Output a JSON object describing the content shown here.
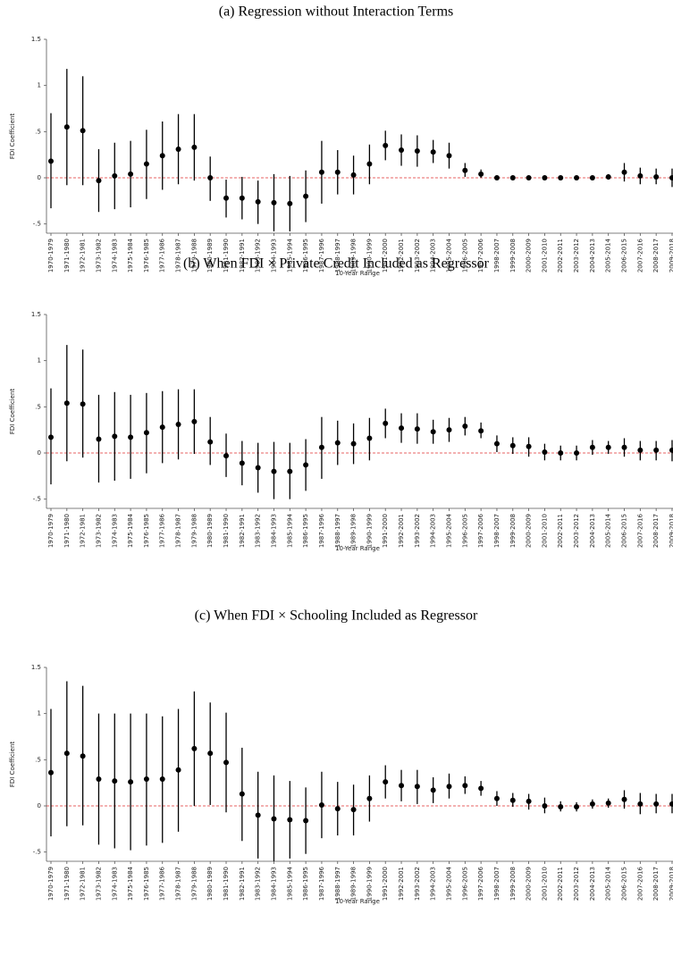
{
  "chart_data": [
    {
      "type": "errorbar",
      "title": "(a) Regression without Interaction Terms",
      "ylabel": "FDI Coefficient",
      "xlabel": "10-Year Range",
      "categories": [
        "1970-1979",
        "1971-1980",
        "1972-1981",
        "1973-1982",
        "1974-1983",
        "1975-1984",
        "1976-1985",
        "1977-1986",
        "1978-1987",
        "1979-1988",
        "1980-1989",
        "1981-1990",
        "1982-1991",
        "1983-1992",
        "1984-1993",
        "1985-1994",
        "1986-1995",
        "1987-1996",
        "1988-1997",
        "1989-1998",
        "1990-1999",
        "1991-2000",
        "1992-2001",
        "1993-2002",
        "1994-2003",
        "1995-2004",
        "1996-2005",
        "1997-2006",
        "1998-2007",
        "1999-2008",
        "2000-2009",
        "2001-2010",
        "2002-2011",
        "2003-2012",
        "2004-2013",
        "2005-2014",
        "2006-2015",
        "2007-2016",
        "2008-2017",
        "2009-2018"
      ],
      "values": [
        0.18,
        0.55,
        0.51,
        -0.03,
        0.02,
        0.04,
        0.15,
        0.24,
        0.31,
        0.33,
        0.0,
        -0.22,
        -0.22,
        -0.26,
        -0.27,
        -0.28,
        -0.2,
        0.06,
        0.06,
        0.03,
        0.15,
        0.35,
        0.3,
        0.29,
        0.28,
        0.24,
        0.08,
        0.04,
        0.0,
        0.0,
        0.0,
        0.0,
        0.0,
        0.0,
        0.0,
        0.01,
        0.06,
        0.02,
        0.01,
        0.0
      ],
      "lower": [
        -0.33,
        -0.08,
        -0.08,
        -0.37,
        -0.34,
        -0.32,
        -0.23,
        -0.13,
        -0.07,
        -0.03,
        -0.25,
        -0.43,
        -0.45,
        -0.5,
        -0.58,
        -0.58,
        -0.48,
        -0.28,
        -0.18,
        -0.18,
        -0.07,
        0.19,
        0.13,
        0.12,
        0.16,
        0.1,
        0.01,
        0.0,
        -0.02,
        -0.02,
        -0.02,
        -0.02,
        -0.02,
        -0.02,
        -0.02,
        -0.02,
        -0.04,
        -0.07,
        -0.07,
        -0.1
      ],
      "upper": [
        0.7,
        1.18,
        1.1,
        0.31,
        0.38,
        0.4,
        0.52,
        0.61,
        0.69,
        0.69,
        0.23,
        -0.02,
        0.01,
        -0.03,
        0.04,
        0.02,
        0.08,
        0.4,
        0.3,
        0.24,
        0.36,
        0.51,
        0.47,
        0.46,
        0.41,
        0.38,
        0.16,
        0.09,
        0.02,
        0.02,
        0.02,
        0.02,
        0.02,
        0.02,
        0.02,
        0.04,
        0.16,
        0.11,
        0.1,
        0.1
      ],
      "color": "#000000",
      "refline": 0,
      "refline_color": "#e03030",
      "ylim": [
        -0.6,
        1.5
      ],
      "yticks": [
        {
          "value": -0.5,
          "label": "-.5"
        },
        0,
        {
          "value": 0.5,
          "label": ".5"
        },
        1,
        1.5
      ]
    },
    {
      "type": "errorbar",
      "title": "(b) When FDI × Private Credit Included as Regressor",
      "ylabel": "FDI Coefficient",
      "xlabel": "10-Year Range",
      "categories": [
        "1970-1979",
        "1971-1980",
        "1972-1981",
        "1973-1982",
        "1974-1983",
        "1975-1984",
        "1976-1985",
        "1977-1986",
        "1978-1987",
        "1979-1988",
        "1980-1989",
        "1981-1990",
        "1982-1991",
        "1983-1992",
        "1984-1993",
        "1985-1994",
        "1986-1995",
        "1987-1996",
        "1988-1997",
        "1989-1998",
        "1990-1999",
        "1991-2000",
        "1992-2001",
        "1993-2002",
        "1994-2003",
        "1995-2004",
        "1996-2005",
        "1997-2006",
        "1998-2007",
        "1999-2008",
        "2000-2009",
        "2001-2010",
        "2002-2011",
        "2003-2012",
        "2004-2013",
        "2005-2014",
        "2006-2015",
        "2007-2016",
        "2008-2017",
        "2009-2018"
      ],
      "values": [
        0.17,
        0.54,
        0.53,
        0.15,
        0.18,
        0.17,
        0.22,
        0.28,
        0.31,
        0.34,
        0.12,
        -0.03,
        -0.11,
        -0.16,
        -0.2,
        -0.2,
        -0.13,
        0.06,
        0.11,
        0.1,
        0.16,
        0.32,
        0.27,
        0.26,
        0.23,
        0.25,
        0.29,
        0.24,
        0.1,
        0.08,
        0.07,
        0.01,
        0.0,
        0.0,
        0.06,
        0.06,
        0.06,
        0.03,
        0.03,
        0.03
      ],
      "lower": [
        -0.34,
        -0.09,
        -0.05,
        -0.32,
        -0.3,
        -0.28,
        -0.22,
        -0.11,
        -0.07,
        -0.01,
        -0.13,
        -0.26,
        -0.35,
        -0.43,
        -0.5,
        -0.5,
        -0.41,
        -0.28,
        -0.13,
        -0.12,
        -0.08,
        0.16,
        0.11,
        0.1,
        0.1,
        0.12,
        0.19,
        0.16,
        0.01,
        -0.01,
        -0.04,
        -0.08,
        -0.08,
        -0.08,
        -0.02,
        -0.01,
        -0.04,
        -0.08,
        -0.08,
        -0.09
      ],
      "upper": [
        0.7,
        1.17,
        1.12,
        0.63,
        0.66,
        0.63,
        0.65,
        0.67,
        0.69,
        0.69,
        0.39,
        0.21,
        0.13,
        0.11,
        0.12,
        0.11,
        0.15,
        0.39,
        0.35,
        0.32,
        0.38,
        0.48,
        0.43,
        0.43,
        0.36,
        0.38,
        0.39,
        0.33,
        0.19,
        0.17,
        0.17,
        0.1,
        0.08,
        0.08,
        0.14,
        0.13,
        0.16,
        0.13,
        0.13,
        0.14
      ],
      "color": "#000000",
      "refline": 0,
      "refline_color": "#e03030",
      "ylim": [
        -0.6,
        1.5
      ],
      "yticks": [
        {
          "value": -0.5,
          "label": "-.5"
        },
        0,
        {
          "value": 0.5,
          "label": ".5"
        },
        1,
        1.5
      ]
    },
    {
      "type": "errorbar",
      "title": "(c) When FDI × Schooling Included as Regressor",
      "ylabel": "FDI Coefficient",
      "xlabel": "10-Year Range",
      "categories": [
        "1970-1979",
        "1971-1980",
        "1972-1981",
        "1973-1982",
        "1974-1983",
        "1975-1984",
        "1976-1985",
        "1977-1986",
        "1978-1987",
        "1979-1988",
        "1980-1989",
        "1981-1990",
        "1982-1991",
        "1983-1992",
        "1984-1993",
        "1985-1994",
        "1986-1995",
        "1987-1996",
        "1988-1997",
        "1989-1998",
        "1990-1999",
        "1991-2000",
        "1992-2001",
        "1993-2002",
        "1994-2003",
        "1995-2004",
        "1996-2005",
        "1997-2006",
        "1998-2007",
        "1999-2008",
        "2000-2009",
        "2001-2010",
        "2002-2011",
        "2003-2012",
        "2004-2013",
        "2005-2014",
        "2006-2015",
        "2007-2016",
        "2008-2017",
        "2009-2018"
      ],
      "values": [
        0.36,
        0.57,
        0.54,
        0.29,
        0.27,
        0.26,
        0.29,
        0.29,
        0.39,
        0.62,
        0.57,
        0.47,
        0.13,
        -0.1,
        -0.14,
        -0.15,
        -0.16,
        0.01,
        -0.03,
        -0.04,
        0.08,
        0.26,
        0.22,
        0.21,
        0.17,
        0.21,
        0.22,
        0.19,
        0.08,
        0.06,
        0.05,
        0.0,
        -0.01,
        -0.01,
        0.02,
        0.03,
        0.07,
        0.02,
        0.02,
        0.02
      ],
      "lower": [
        -0.33,
        -0.22,
        -0.21,
        -0.42,
        -0.46,
        -0.48,
        -0.43,
        -0.4,
        -0.28,
        0.0,
        0.01,
        -0.07,
        -0.38,
        -0.57,
        -0.6,
        -0.57,
        -0.52,
        -0.35,
        -0.32,
        -0.32,
        -0.17,
        0.08,
        0.05,
        0.02,
        0.03,
        0.08,
        0.13,
        0.11,
        0.0,
        -0.01,
        -0.04,
        -0.08,
        -0.06,
        -0.06,
        -0.03,
        -0.02,
        -0.03,
        -0.09,
        -0.08,
        -0.08
      ],
      "upper": [
        1.05,
        1.35,
        1.3,
        1.0,
        1.0,
        1.0,
        1.0,
        0.97,
        1.05,
        1.24,
        1.12,
        1.01,
        0.63,
        0.37,
        0.33,
        0.27,
        0.2,
        0.37,
        0.26,
        0.23,
        0.33,
        0.44,
        0.39,
        0.39,
        0.31,
        0.35,
        0.32,
        0.27,
        0.16,
        0.14,
        0.13,
        0.09,
        0.05,
        0.04,
        0.07,
        0.08,
        0.17,
        0.14,
        0.13,
        0.13
      ],
      "color": "#000000",
      "refline": 0,
      "refline_color": "#e03030",
      "ylim": [
        -0.6,
        1.5
      ],
      "yticks": [
        {
          "value": -0.5,
          "label": "-.5"
        },
        0,
        {
          "value": 0.5,
          "label": ".5"
        },
        1,
        1.5
      ]
    }
  ]
}
